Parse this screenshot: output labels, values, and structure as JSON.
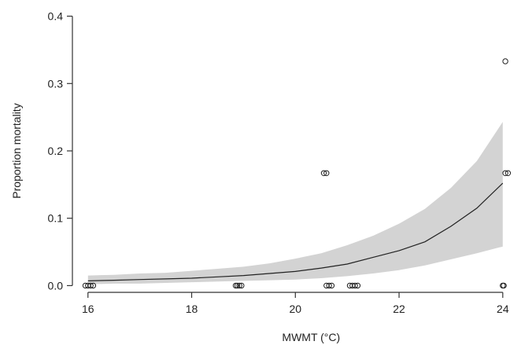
{
  "chart_data": {
    "type": "scatter",
    "title": "",
    "xlabel": "MWMT (°C)",
    "ylabel": "Proportion mortality",
    "xlim": [
      15.7,
      24.2
    ],
    "ylim": [
      -0.01,
      0.41
    ],
    "x_ticks": [
      16,
      18,
      20,
      22,
      24
    ],
    "y_ticks": [
      0.0,
      0.1,
      0.2,
      0.3,
      0.4
    ],
    "x_tick_labels": [
      "16",
      "18",
      "20",
      "22",
      "24"
    ],
    "y_tick_labels": [
      "0.0",
      "0.1",
      "0.2",
      "0.3",
      "0.4"
    ],
    "grid": false,
    "series": [
      {
        "kind": "observed",
        "marker": "open-circle",
        "x": [
          15.95,
          16.0,
          16.05,
          16.1,
          18.85,
          18.88,
          18.92,
          18.96,
          20.55,
          20.6,
          20.6,
          20.65,
          20.7,
          21.05,
          21.1,
          21.15,
          21.2,
          24.0,
          24.02,
          24.05,
          24.05,
          24.1
        ],
        "y": [
          0,
          0,
          0,
          0,
          0,
          0,
          0,
          0,
          0.167,
          0.167,
          0,
          0,
          0,
          0,
          0,
          0,
          0,
          0,
          0,
          0.333,
          0.167,
          0.167
        ]
      },
      {
        "kind": "fitted",
        "x": [
          16.0,
          16.5,
          17.0,
          17.5,
          18.0,
          18.5,
          19.0,
          19.5,
          20.0,
          20.5,
          21.0,
          21.5,
          22.0,
          22.5,
          23.0,
          23.5,
          24.0
        ],
        "y": [
          0.007,
          0.008,
          0.009,
          0.01,
          0.011,
          0.013,
          0.015,
          0.018,
          0.021,
          0.026,
          0.032,
          0.042,
          0.052,
          0.065,
          0.088,
          0.115,
          0.152
        ],
        "lower": [
          0.002,
          0.003,
          0.003,
          0.004,
          0.005,
          0.006,
          0.007,
          0.008,
          0.009,
          0.011,
          0.014,
          0.018,
          0.023,
          0.03,
          0.039,
          0.048,
          0.058
        ],
        "upper": [
          0.015,
          0.016,
          0.018,
          0.019,
          0.022,
          0.025,
          0.028,
          0.033,
          0.04,
          0.048,
          0.06,
          0.074,
          0.092,
          0.114,
          0.145,
          0.185,
          0.243
        ]
      }
    ],
    "colors": {
      "band": "#d3d3d3",
      "line": "#222222",
      "points": "#222222"
    }
  }
}
